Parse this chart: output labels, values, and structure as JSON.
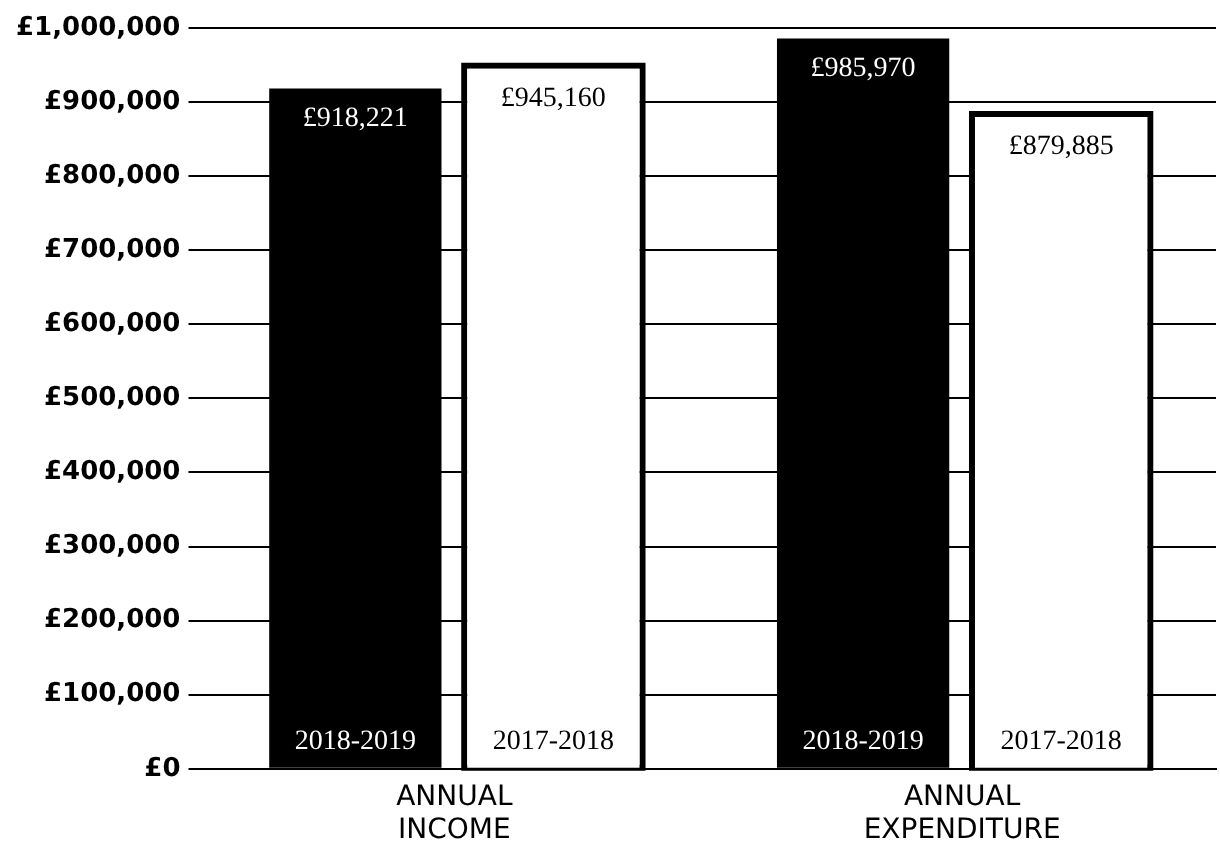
{
  "chart_data": {
    "type": "bar",
    "categories": [
      "ANNUAL INCOME",
      "ANNUAL EXPENDITURE"
    ],
    "series": [
      {
        "name": "2018-2019",
        "color": "#000000",
        "values": [
          918221,
          985970
        ],
        "value_labels": [
          "£918,221",
          "£985,970"
        ]
      },
      {
        "name": "2017-2018",
        "color": "#ffffff",
        "values": [
          945160,
          879885
        ],
        "value_labels": [
          "£945,160",
          "£879,885"
        ]
      }
    ],
    "ylim": [
      0,
      1000000
    ],
    "yticks": [
      {
        "value": 0,
        "label": "£0"
      },
      {
        "value": 100000,
        "label": "£100,000"
      },
      {
        "value": 200000,
        "label": "£200,000"
      },
      {
        "value": 300000,
        "label": "£300,000"
      },
      {
        "value": 400000,
        "label": "£400,000"
      },
      {
        "value": 500000,
        "label": "£500,000"
      },
      {
        "value": 600000,
        "label": "£600,000"
      },
      {
        "value": 700000,
        "label": "£700,000"
      },
      {
        "value": 800000,
        "label": "£800,000"
      },
      {
        "value": 900000,
        "label": "£900,000"
      },
      {
        "value": 1000000,
        "label": "£1,000,000"
      }
    ],
    "grid": "y",
    "legend": false
  }
}
